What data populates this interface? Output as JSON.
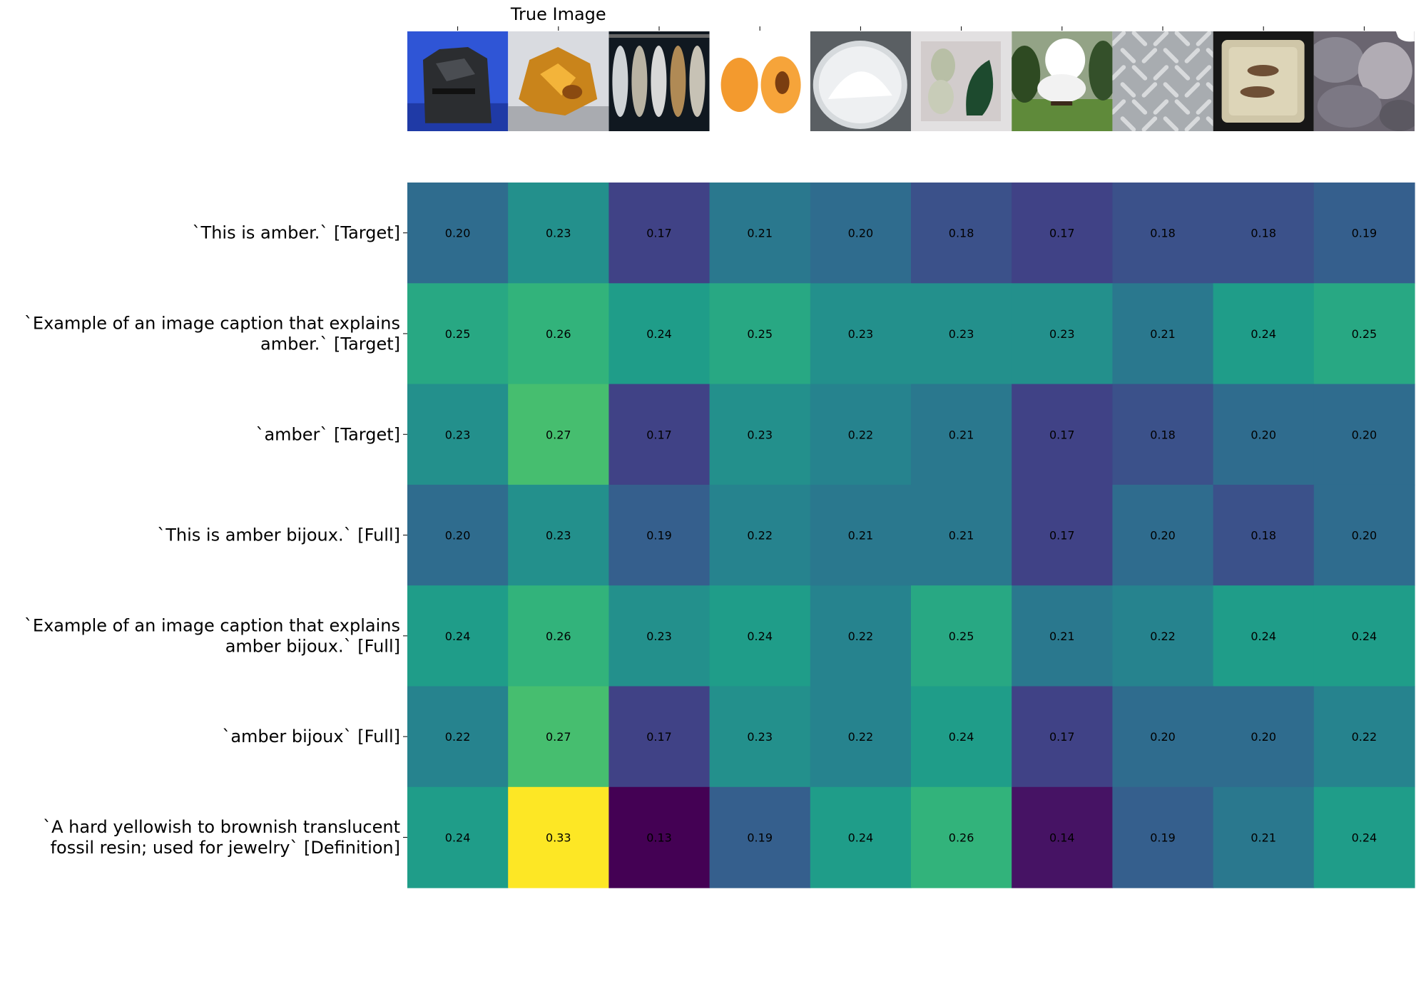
{
  "chart_data": {
    "type": "heatmap",
    "title": "",
    "column_header": "True Image",
    "column_header_index": 1,
    "colormap": "viridis",
    "colormap_stops": [
      "#440154",
      "#482878",
      "#3e4989",
      "#31688e",
      "#26828e",
      "#1f9e89",
      "#35b779",
      "#6ece58",
      "#b5de2b",
      "#fde725"
    ],
    "value_range": [
      0.13,
      0.33
    ],
    "columns": [
      {
        "icon": "coal-photo-icon"
      },
      {
        "icon": "amber-stone-photo-icon"
      },
      {
        "icon": "smoked-fish-photo-icon"
      },
      {
        "icon": "apricot-photo-icon"
      },
      {
        "icon": "white-powder-photo-icon"
      },
      {
        "icon": "jade-stones-photo-icon"
      },
      {
        "icon": "steam-geyser-photo-icon"
      },
      {
        "icon": "diamond-plate-photo-icon"
      },
      {
        "icon": "cave-painting-tile-photo-icon"
      },
      {
        "icon": "grey-rocks-photo-icon"
      }
    ],
    "rows": [
      {
        "label_lines": [
          "`This is amber.` [Target]"
        ],
        "values": [
          0.2,
          0.23,
          0.17,
          0.21,
          0.2,
          0.18,
          0.17,
          0.18,
          0.18,
          0.19
        ]
      },
      {
        "label_lines": [
          "`Example of an image caption that explains",
          "amber.` [Target]"
        ],
        "values": [
          0.25,
          0.26,
          0.24,
          0.25,
          0.23,
          0.23,
          0.23,
          0.21,
          0.24,
          0.25
        ]
      },
      {
        "label_lines": [
          "`amber` [Target]"
        ],
        "values": [
          0.23,
          0.27,
          0.17,
          0.23,
          0.22,
          0.21,
          0.17,
          0.18,
          0.2,
          0.2
        ]
      },
      {
        "label_lines": [
          "`This is amber bijoux.` [Full]"
        ],
        "values": [
          0.2,
          0.23,
          0.19,
          0.22,
          0.21,
          0.21,
          0.17,
          0.2,
          0.18,
          0.2
        ]
      },
      {
        "label_lines": [
          "`Example of an image caption that explains",
          "amber bijoux.` [Full]"
        ],
        "values": [
          0.24,
          0.26,
          0.23,
          0.24,
          0.22,
          0.25,
          0.21,
          0.22,
          0.24,
          0.24
        ]
      },
      {
        "label_lines": [
          "`amber bijoux` [Full]"
        ],
        "values": [
          0.22,
          0.27,
          0.17,
          0.23,
          0.22,
          0.24,
          0.17,
          0.2,
          0.2,
          0.22
        ]
      },
      {
        "label_lines": [
          "`A hard yellowish to brownish translucent",
          "fossil resin; used for jewelry` [Definition]"
        ],
        "values": [
          0.24,
          0.33,
          0.13,
          0.19,
          0.24,
          0.26,
          0.14,
          0.19,
          0.21,
          0.24
        ]
      }
    ]
  }
}
